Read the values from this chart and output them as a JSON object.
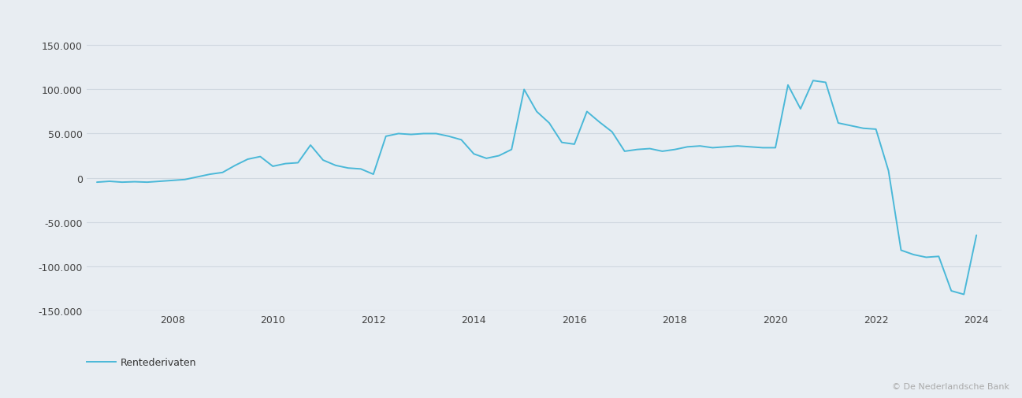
{
  "line_color": "#4ab8d8",
  "background_color": "#e8edf2",
  "plot_background_color": "#e8edf2",
  "grid_color": "#d0d8e0",
  "ylim": [
    -150000,
    175000
  ],
  "yticks": [
    -150000,
    -100000,
    -50000,
    0,
    50000,
    100000,
    150000
  ],
  "ytick_labels": [
    "-150.000",
    "-100.000",
    "-50.000",
    "0",
    "50.000",
    "100.000",
    "150.000"
  ],
  "xticks": [
    2008,
    2010,
    2012,
    2014,
    2016,
    2018,
    2020,
    2022,
    2024
  ],
  "xlim": [
    2006.3,
    2024.5
  ],
  "legend_label": "Rentederivaten",
  "copyright": "© De Nederlandsche Bank",
  "line_width": 1.4,
  "x": [
    2006.5,
    2006.75,
    2007.0,
    2007.25,
    2007.5,
    2007.75,
    2008.0,
    2008.25,
    2008.5,
    2008.75,
    2009.0,
    2009.25,
    2009.5,
    2009.75,
    2010.0,
    2010.25,
    2010.5,
    2010.75,
    2011.0,
    2011.25,
    2011.5,
    2011.75,
    2012.0,
    2012.25,
    2012.5,
    2012.75,
    2013.0,
    2013.25,
    2013.5,
    2013.75,
    2014.0,
    2014.25,
    2014.5,
    2014.75,
    2015.0,
    2015.25,
    2015.5,
    2015.75,
    2016.0,
    2016.25,
    2016.5,
    2016.75,
    2017.0,
    2017.25,
    2017.5,
    2017.75,
    2018.0,
    2018.25,
    2018.5,
    2018.75,
    2019.0,
    2019.25,
    2019.5,
    2019.75,
    2020.0,
    2020.25,
    2020.5,
    2020.75,
    2021.0,
    2021.25,
    2021.5,
    2021.75,
    2022.0,
    2022.25,
    2022.5,
    2022.75,
    2023.0,
    2023.25,
    2023.5,
    2023.75,
    2024.0
  ],
  "y": [
    -5000,
    -4000,
    -5000,
    -4500,
    -5000,
    -4000,
    -3000,
    -2000,
    1000,
    4000,
    6000,
    14000,
    21000,
    24000,
    13000,
    16000,
    17000,
    37000,
    20000,
    14000,
    11000,
    10000,
    4000,
    47000,
    50000,
    49000,
    50000,
    50000,
    47000,
    43000,
    27000,
    22000,
    25000,
    32000,
    100000,
    75000,
    62000,
    40000,
    38000,
    75000,
    63000,
    52000,
    30000,
    32000,
    33000,
    30000,
    32000,
    35000,
    36000,
    34000,
    35000,
    36000,
    35000,
    34000,
    34000,
    105000,
    78000,
    110000,
    108000,
    62000,
    59000,
    56000,
    55000,
    8000,
    -82000,
    -87000,
    -90000,
    -89000,
    -128000,
    -132000,
    -65000
  ]
}
